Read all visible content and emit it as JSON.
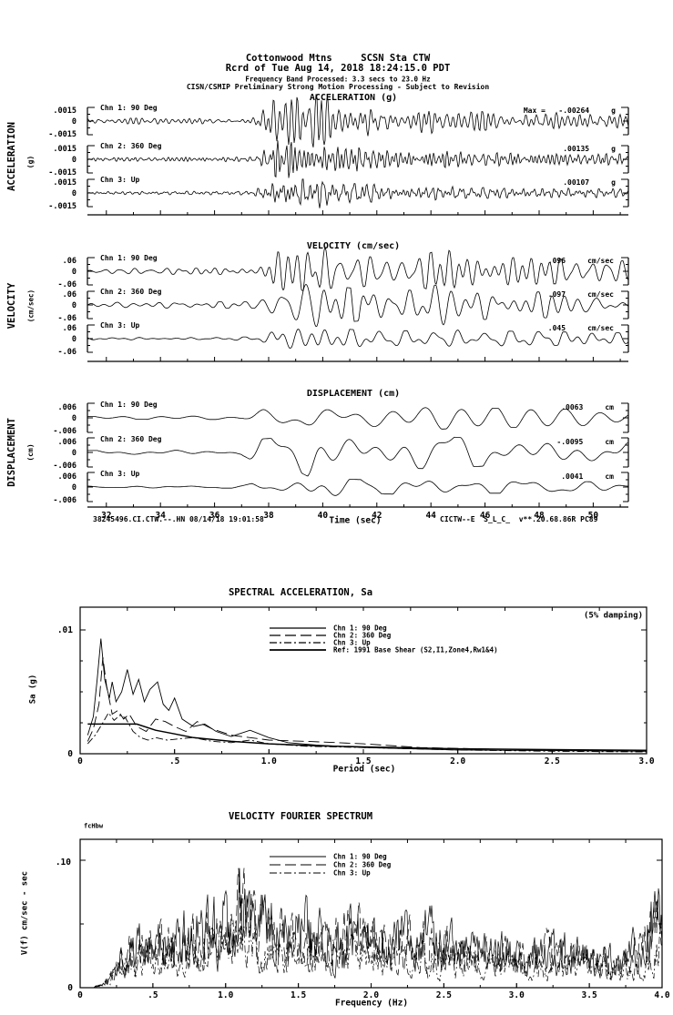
{
  "page": {
    "background": "#ffffff",
    "ink": "#000000"
  },
  "header": {
    "line1": "Cottonwood Mtns     SCSN Sta CTW",
    "line2": "Rcrd of Tue Aug 14, 2018 18:24:15.0 PDT",
    "line3": "Frequency Band Processed: 3.3 secs to 23.0 Hz",
    "line4": "CISN/CSMIP Preliminary Strong Motion Processing - Subject to Revision"
  },
  "footer": {
    "left": "38245496.CI.CTW.--.HN 08/14/18 19:01:58",
    "right": "CICTW--E  S_L_C_  v**.20.68.86R PC89"
  },
  "chart_data": [
    {
      "id": "acceleration-time-series",
      "type": "line",
      "title": "ACCELERATION (g)",
      "side_label": "ACCELERATION",
      "side_units": "(g)",
      "xlim": [
        31.3,
        51.3
      ],
      "xticks": [
        32,
        34,
        36,
        38,
        40,
        42,
        44,
        46,
        48,
        50
      ],
      "ytick_top": ".0015",
      "ytick_zero": "0",
      "ytick_bot": "-.0015",
      "ytick_value": 0.0015,
      "channels": [
        {
          "label": "Chn 1: 90 Deg",
          "max_text": "Max =   -.00264     g",
          "peak": -0.00264,
          "units": "g"
        },
        {
          "label": "Chn 2: 360 Deg",
          "max_text": ".00135     g",
          "peak": 0.00135,
          "units": "g"
        },
        {
          "label": "Chn 3: Up",
          "max_text": ".00107     g",
          "peak": 0.00107,
          "units": "g"
        }
      ],
      "envelope": [
        [
          31.3,
          0.1
        ],
        [
          37.4,
          0.12
        ],
        [
          37.9,
          0.55
        ],
        [
          38.4,
          1.0
        ],
        [
          39.2,
          0.85
        ],
        [
          39.8,
          1.0
        ],
        [
          40.6,
          0.6
        ],
        [
          41.6,
          0.62
        ],
        [
          42.6,
          0.4
        ],
        [
          44.0,
          0.45
        ],
        [
          46.0,
          0.34
        ],
        [
          48.0,
          0.32
        ],
        [
          50.0,
          0.3
        ],
        [
          51.3,
          0.27
        ]
      ]
    },
    {
      "id": "velocity-time-series",
      "type": "line",
      "title": "VELOCITY (cm/sec)",
      "side_label": "VELOCITY",
      "side_units": "(cm/sec)",
      "xlim": [
        31.3,
        51.3
      ],
      "xticks": [
        32,
        34,
        36,
        38,
        40,
        42,
        44,
        46,
        48,
        50
      ],
      "ytick_top": ".06",
      "ytick_zero": "0",
      "ytick_bot": "-.06",
      "ytick_value": 0.06,
      "channels": [
        {
          "label": "Chn 1: 90 Deg",
          "max_text": ".096     cm/sec",
          "peak": 0.096,
          "units": "cm/sec"
        },
        {
          "label": "Chn 2: 360 Deg",
          "max_text": ".097     cm/sec",
          "peak": 0.097,
          "units": "cm/sec"
        },
        {
          "label": "Chn 3: Up",
          "max_text": ".045     cm/sec",
          "peak": 0.045,
          "units": "cm/sec"
        }
      ],
      "envelope": [
        [
          31.3,
          0.1
        ],
        [
          37.6,
          0.12
        ],
        [
          38.2,
          0.75
        ],
        [
          39.0,
          0.6
        ],
        [
          39.9,
          1.0
        ],
        [
          40.8,
          0.65
        ],
        [
          42.0,
          0.5
        ],
        [
          43.5,
          0.55
        ],
        [
          44.6,
          0.85
        ],
        [
          45.5,
          0.55
        ],
        [
          47.0,
          0.5
        ],
        [
          49.0,
          0.45
        ],
        [
          51.3,
          0.38
        ]
      ]
    },
    {
      "id": "displacement-time-series",
      "type": "line",
      "title": "DISPLACEMENT (cm)",
      "side_label": "DISPLACEMENT",
      "side_units": "(cm)",
      "xlabel": "Time (sec)",
      "xlim": [
        31.3,
        51.3
      ],
      "xticks": [
        32,
        34,
        36,
        38,
        40,
        42,
        44,
        46,
        48,
        50
      ],
      "ytick_top": ".006",
      "ytick_zero": "0",
      "ytick_bot": "-.006",
      "ytick_value": 0.006,
      "channels": [
        {
          "label": "Chn 1: 90 Deg",
          "max_text": ".0063     cm",
          "peak": 0.0063,
          "units": "cm"
        },
        {
          "label": "Chn 2: 360 Deg",
          "max_text": "-.0095     cm",
          "peak": -0.0095,
          "units": "cm"
        },
        {
          "label": "Chn 3: Up",
          "max_text": ".0041     cm",
          "peak": 0.0041,
          "units": "cm"
        }
      ],
      "envelope": [
        [
          31.3,
          0.07
        ],
        [
          37.0,
          0.09
        ],
        [
          37.8,
          0.5
        ],
        [
          38.8,
          0.55
        ],
        [
          39.7,
          1.0
        ],
        [
          40.6,
          0.65
        ],
        [
          42.0,
          0.55
        ],
        [
          44.0,
          0.6
        ],
        [
          46.0,
          0.5
        ],
        [
          48.0,
          0.48
        ],
        [
          50.0,
          0.42
        ],
        [
          51.3,
          0.34
        ]
      ]
    },
    {
      "id": "spectral-acceleration",
      "type": "line",
      "title": "SPECTRAL ACCELERATION, Sa",
      "annotation": "(5% damping)",
      "xlabel": "Period (sec)",
      "ylabel": "Sa (g)",
      "xlim": [
        0,
        3.0
      ],
      "xtick_labels": [
        "0",
        ".5",
        "1.0",
        "1.5",
        "2.0",
        "2.5",
        "3.0"
      ],
      "ytick_label": ".01",
      "ytick_value": 0.01,
      "yzero_label": "0",
      "series": [
        {
          "name": "Chn 1: 90 Deg",
          "points": [
            [
              0.04,
              0.0015
            ],
            [
              0.07,
              0.003
            ],
            [
              0.09,
              0.006
            ],
            [
              0.11,
              0.0093
            ],
            [
              0.13,
              0.006
            ],
            [
              0.155,
              0.0045
            ],
            [
              0.17,
              0.0058
            ],
            [
              0.19,
              0.0042
            ],
            [
              0.22,
              0.005
            ],
            [
              0.25,
              0.0068
            ],
            [
              0.28,
              0.0048
            ],
            [
              0.31,
              0.006
            ],
            [
              0.34,
              0.0042
            ],
            [
              0.37,
              0.0052
            ],
            [
              0.41,
              0.0058
            ],
            [
              0.44,
              0.004
            ],
            [
              0.47,
              0.0035
            ],
            [
              0.5,
              0.0045
            ],
            [
              0.54,
              0.0028
            ],
            [
              0.6,
              0.0022
            ],
            [
              0.66,
              0.0024
            ],
            [
              0.72,
              0.0018
            ],
            [
              0.8,
              0.0014
            ],
            [
              0.9,
              0.0019
            ],
            [
              1.0,
              0.0013
            ],
            [
              1.1,
              0.0009
            ],
            [
              1.25,
              0.0007
            ],
            [
              1.5,
              0.0005
            ],
            [
              1.75,
              0.0004
            ],
            [
              2.0,
              0.0003
            ],
            [
              2.5,
              0.00025
            ],
            [
              3.0,
              0.0002
            ]
          ]
        },
        {
          "name": "Chn 2: 360 Deg",
          "points": [
            [
              0.04,
              0.001
            ],
            [
              0.07,
              0.002
            ],
            [
              0.1,
              0.004
            ],
            [
              0.12,
              0.0078
            ],
            [
              0.14,
              0.0055
            ],
            [
              0.17,
              0.0032
            ],
            [
              0.2,
              0.0035
            ],
            [
              0.23,
              0.0028
            ],
            [
              0.26,
              0.0032
            ],
            [
              0.3,
              0.0022
            ],
            [
              0.35,
              0.0018
            ],
            [
              0.4,
              0.0028
            ],
            [
              0.45,
              0.0026
            ],
            [
              0.5,
              0.0022
            ],
            [
              0.56,
              0.0018
            ],
            [
              0.62,
              0.0026
            ],
            [
              0.7,
              0.002
            ],
            [
              0.8,
              0.0015
            ],
            [
              0.9,
              0.0013
            ],
            [
              1.0,
              0.0011
            ],
            [
              1.2,
              0.001
            ],
            [
              1.5,
              0.0008
            ],
            [
              1.8,
              0.0005
            ],
            [
              2.1,
              0.0004
            ],
            [
              2.5,
              0.0003
            ],
            [
              3.0,
              0.0002
            ]
          ]
        },
        {
          "name": "Chn 3: Up",
          "points": [
            [
              0.04,
              0.0008
            ],
            [
              0.08,
              0.0015
            ],
            [
              0.12,
              0.0025
            ],
            [
              0.15,
              0.0033
            ],
            [
              0.18,
              0.0027
            ],
            [
              0.21,
              0.0031
            ],
            [
              0.24,
              0.0029
            ],
            [
              0.28,
              0.0018
            ],
            [
              0.32,
              0.0013
            ],
            [
              0.36,
              0.0011
            ],
            [
              0.4,
              0.0013
            ],
            [
              0.46,
              0.0011
            ],
            [
              0.52,
              0.0012
            ],
            [
              0.6,
              0.0013
            ],
            [
              0.7,
              0.001
            ],
            [
              0.8,
              0.0009
            ],
            [
              0.9,
              0.0011
            ],
            [
              1.0,
              0.0008
            ],
            [
              1.2,
              0.0006
            ],
            [
              1.5,
              0.0005
            ],
            [
              2.0,
              0.0003
            ],
            [
              2.5,
              0.0002
            ],
            [
              3.0,
              0.00015
            ]
          ]
        },
        {
          "name": "Ref: 1991 Base Shear (S2,I1,Zone4,Rw1&4)",
          "points": [
            [
              0.04,
              0.0024
            ],
            [
              0.3,
              0.0024
            ],
            [
              0.4,
              0.0019
            ],
            [
              0.5,
              0.0016
            ],
            [
              0.6,
              0.0013
            ],
            [
              0.8,
              0.001
            ],
            [
              1.0,
              0.0008
            ],
            [
              1.25,
              0.00065
            ],
            [
              1.5,
              0.00055
            ],
            [
              2.0,
              0.0004
            ],
            [
              2.5,
              0.00033
            ],
            [
              3.0,
              0.00028
            ]
          ]
        }
      ]
    },
    {
      "id": "velocity-fourier-spectrum",
      "type": "line",
      "title": "VELOCITY FOURIER SPECTRUM",
      "note": "fcHbw",
      "xlabel": "Frequency (Hz)",
      "ylabel": "V(f)   cm/sec - sec",
      "xlim": [
        0,
        4.0
      ],
      "xtick_labels": [
        "0",
        ".5",
        "1.0",
        "1.5",
        "2.0",
        "2.5",
        "3.0",
        "3.5",
        "4.0"
      ],
      "ytick_label": ".10",
      "ytick_value": 0.1,
      "yzero_label": "0",
      "series": [
        {
          "name": "Chn 1: 90 Deg",
          "factor": 1.0
        },
        {
          "name": "Chn 2: 360 Deg",
          "factor": 0.92
        },
        {
          "name": "Chn 3: Up",
          "factor": 0.62
        }
      ],
      "envelope": [
        [
          0.0,
          0.0
        ],
        [
          0.12,
          0.002
        ],
        [
          0.2,
          0.012
        ],
        [
          0.3,
          0.04
        ],
        [
          0.45,
          0.045
        ],
        [
          0.6,
          0.05
        ],
        [
          0.75,
          0.055
        ],
        [
          0.9,
          0.06
        ],
        [
          1.0,
          0.08
        ],
        [
          1.1,
          0.098
        ],
        [
          1.2,
          0.075
        ],
        [
          1.35,
          0.06
        ],
        [
          1.5,
          0.065
        ],
        [
          1.7,
          0.055
        ],
        [
          1.9,
          0.06
        ],
        [
          2.1,
          0.05
        ],
        [
          2.3,
          0.055
        ],
        [
          2.5,
          0.05
        ],
        [
          2.7,
          0.04
        ],
        [
          2.9,
          0.045
        ],
        [
          3.1,
          0.035
        ],
        [
          3.3,
          0.04
        ],
        [
          3.5,
          0.035
        ],
        [
          3.7,
          0.032
        ],
        [
          3.85,
          0.04
        ],
        [
          3.95,
          0.07
        ],
        [
          4.0,
          0.09
        ]
      ]
    }
  ]
}
